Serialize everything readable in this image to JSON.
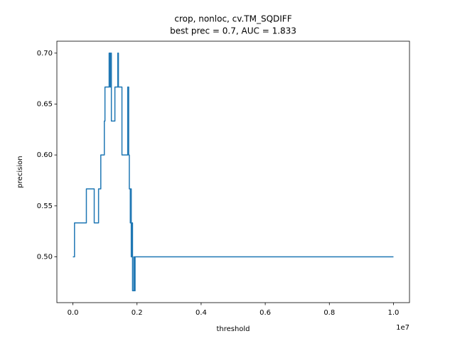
{
  "chart_data": {
    "type": "line",
    "title": "crop, nonloc, cv.TM_SQDIFF",
    "subtitle": "best prec = 0.7, AUC = 1.833",
    "x_label": "threshold",
    "y_label": "precision",
    "x_offset_label": "1e7",
    "x": [
      0,
      50000,
      50000,
      420000,
      420000,
      665000,
      665000,
      800000,
      800000,
      870000,
      870000,
      980000,
      980000,
      1000000,
      1000000,
      1130000,
      1130000,
      1160000,
      1160000,
      1180000,
      1180000,
      1200000,
      1200000,
      1310000,
      1310000,
      1400000,
      1400000,
      1420000,
      1420000,
      1530000,
      1530000,
      1710000,
      1710000,
      1740000,
      1740000,
      1760000,
      1760000,
      1790000,
      1790000,
      1800000,
      1800000,
      1820000,
      1820000,
      1840000,
      1840000,
      1860000,
      1860000,
      1900000,
      1900000,
      1920000,
      1920000,
      1940000,
      1940000,
      10000000
    ],
    "series": [
      {
        "name": "precision",
        "color": "#1f77b4",
        "values": [
          0.5,
          0.5,
          0.5333,
          0.5333,
          0.5667,
          0.5667,
          0.5333,
          0.5333,
          0.5667,
          0.5667,
          0.6,
          0.6,
          0.6333,
          0.6333,
          0.6667,
          0.6667,
          0.7,
          0.7,
          0.6667,
          0.6667,
          0.7,
          0.7,
          0.6333,
          0.6333,
          0.6667,
          0.6667,
          0.7,
          0.7,
          0.6667,
          0.6667,
          0.6,
          0.6,
          0.6667,
          0.6667,
          0.6,
          0.6,
          0.5667,
          0.5667,
          0.5333,
          0.5333,
          0.5667,
          0.5667,
          0.5,
          0.5,
          0.5333,
          0.5333,
          0.4667,
          0.4667,
          0.5,
          0.5,
          0.4667,
          0.4667,
          0.5,
          0.5
        ]
      }
    ],
    "xlim": [
      -500000,
      10500000
    ],
    "xticks": [
      {
        "value": 0,
        "label": "0.0"
      },
      {
        "value": 2000000,
        "label": "0.2"
      },
      {
        "value": 4000000,
        "label": "0.4"
      },
      {
        "value": 6000000,
        "label": "0.6"
      },
      {
        "value": 8000000,
        "label": "0.8"
      },
      {
        "value": 10000000,
        "label": "1.0"
      }
    ],
    "ylim": [
      0.455,
      0.7117
    ],
    "yticks": [
      {
        "value": 0.5,
        "label": "0.50"
      },
      0.55,
      {
        "value": 0.6,
        "label": "0.60"
      },
      0.65,
      {
        "value": 0.7,
        "label": "0.70"
      }
    ],
    "grid": false
  }
}
